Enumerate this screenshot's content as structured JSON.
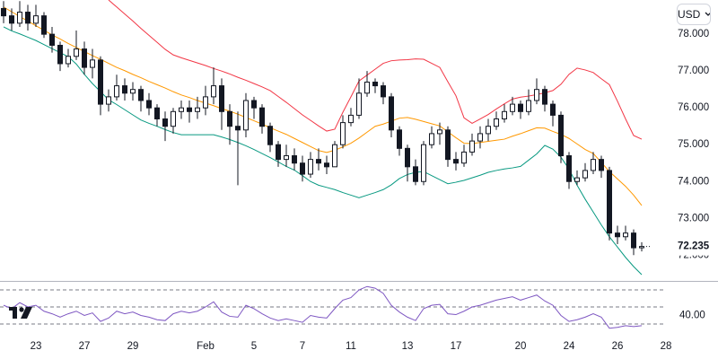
{
  "chart_data": [
    {
      "type": "candlestick",
      "currency": "USD",
      "categories": [
        null,
        null,
        null,
        null,
        "23",
        null,
        null,
        null,
        null,
        null,
        "27",
        null,
        null,
        null,
        null,
        null,
        "29",
        null,
        null,
        null,
        null,
        null,
        null,
        null,
        null,
        "Feb",
        null,
        null,
        null,
        null,
        null,
        "5",
        null,
        null,
        null,
        null,
        null,
        "7",
        null,
        null,
        null,
        null,
        null,
        "11",
        null,
        null,
        null,
        null,
        null,
        null,
        "13",
        null,
        null,
        null,
        null,
        null,
        "17",
        null,
        null,
        null,
        null,
        null,
        null,
        null,
        "20",
        null,
        null,
        null,
        null,
        null,
        "24",
        null,
        null,
        null,
        null,
        null,
        "26",
        null,
        null,
        null,
        null,
        null,
        "28"
      ],
      "open": [
        78.7,
        78.5,
        78.3,
        78.6,
        78.3,
        78.5,
        78.0,
        77.7,
        77.2,
        77.4,
        77.6,
        77.1,
        77.3,
        76.1,
        76.3,
        76.6,
        76.4,
        76.5,
        76.2,
        76.0,
        75.7,
        75.5,
        75.9,
        76.0,
        75.9,
        76.0,
        76.3,
        76.6,
        75.9,
        75.5,
        75.4,
        76.2,
        76.0,
        75.5,
        75.0,
        74.6,
        74.7,
        74.5,
        74.2,
        74.6,
        74.5,
        74.4,
        75.0,
        75.6,
        75.8,
        76.4,
        76.7,
        76.6,
        76.3,
        75.4,
        74.9,
        74.4,
        74.0,
        75.0,
        75.3,
        75.4,
        74.6,
        74.5,
        74.8,
        75.1,
        75.3,
        75.5,
        75.7,
        75.9,
        76.1,
        75.9,
        76.2,
        76.5,
        76.1,
        75.8,
        74.7,
        74.0,
        74.1,
        74.3,
        74.6,
        74.3,
        72.6,
        72.5,
        72.6,
        72.2,
        null,
        null,
        null
      ],
      "high": [
        78.9,
        78.7,
        78.9,
        78.8,
        78.8,
        78.6,
        78.2,
        77.8,
        77.6,
        78.1,
        77.8,
        77.6,
        77.4,
        76.5,
        76.9,
        76.8,
        76.7,
        76.6,
        76.4,
        76.1,
        75.9,
        76.0,
        76.2,
        76.2,
        76.3,
        76.6,
        77.1,
        76.8,
        76.1,
        75.9,
        76.4,
        76.3,
        76.1,
        75.6,
        75.1,
        75.0,
        74.9,
        74.7,
        74.8,
        74.9,
        74.7,
        75.1,
        75.8,
        76.0,
        76.8,
        77.0,
        76.8,
        76.7,
        76.4,
        75.5,
        75.0,
        74.6,
        75.1,
        75.5,
        75.6,
        75.5,
        74.8,
        75.0,
        75.3,
        75.5,
        75.7,
        75.9,
        76.1,
        76.3,
        76.2,
        76.5,
        76.8,
        76.6,
        76.2,
        75.9,
        74.8,
        74.3,
        74.5,
        74.8,
        74.7,
        74.4,
        72.8,
        72.8,
        72.7,
        72.35,
        null,
        null,
        null
      ],
      "low": [
        78.3,
        78.1,
        78.2,
        78.1,
        78.2,
        77.9,
        77.5,
        77.0,
        77.1,
        77.3,
        76.9,
        76.8,
        75.8,
        75.9,
        76.2,
        76.2,
        76.2,
        75.9,
        75.8,
        75.5,
        75.1,
        75.3,
        75.7,
        75.6,
        75.7,
        75.8,
        76.1,
        75.4,
        75.0,
        73.9,
        75.2,
        75.7,
        75.3,
        74.8,
        74.4,
        74.4,
        74.3,
        74.0,
        74.1,
        74.3,
        74.2,
        74.4,
        74.9,
        75.5,
        75.7,
        76.3,
        76.4,
        76.1,
        75.2,
        74.7,
        74.0,
        73.9,
        73.9,
        74.9,
        75.0,
        74.4,
        74.3,
        74.4,
        74.7,
        74.9,
        75.1,
        75.4,
        75.6,
        75.8,
        75.7,
        75.8,
        76.1,
        75.9,
        75.5,
        74.5,
        73.8,
        73.9,
        74.0,
        74.2,
        74.1,
        72.4,
        72.3,
        72.4,
        72.0,
        72.1,
        null,
        null,
        null
      ],
      "close": [
        78.5,
        78.3,
        78.6,
        78.3,
        78.5,
        78.0,
        77.7,
        77.2,
        77.4,
        77.6,
        77.1,
        77.3,
        76.1,
        76.3,
        76.6,
        76.4,
        76.5,
        76.2,
        76.0,
        75.7,
        75.5,
        75.9,
        76.0,
        75.9,
        76.0,
        76.3,
        76.6,
        75.9,
        75.5,
        75.4,
        76.2,
        76.0,
        75.5,
        75.0,
        74.6,
        74.7,
        74.5,
        74.2,
        74.6,
        74.5,
        74.4,
        75.0,
        75.6,
        75.8,
        76.4,
        76.7,
        76.6,
        76.3,
        75.4,
        74.9,
        74.4,
        74.0,
        75.0,
        75.3,
        75.4,
        74.6,
        74.5,
        74.8,
        75.1,
        75.3,
        75.5,
        75.7,
        75.9,
        76.1,
        75.9,
        76.2,
        76.5,
        76.1,
        75.8,
        74.7,
        74.0,
        74.1,
        74.3,
        74.6,
        74.3,
        72.6,
        72.5,
        72.6,
        72.2,
        72.235,
        null,
        null,
        null
      ],
      "up_color": "#ffffff",
      "down_color": "#131722",
      "wick_color": "#131722",
      "bands": [
        {
          "color": "#f23645",
          "values": [
            null,
            null,
            null,
            null,
            null,
            null,
            null,
            null,
            null,
            null,
            null,
            null,
            null,
            78.93,
            78.74,
            78.55,
            78.36,
            78.16,
            77.97,
            77.78,
            77.59,
            77.44,
            77.36,
            77.29,
            77.22,
            77.15,
            77.07,
            77.0,
            76.92,
            76.83,
            76.75,
            76.66,
            76.57,
            76.47,
            76.31,
            76.15,
            75.98,
            75.81,
            75.66,
            75.51,
            75.37,
            75.42,
            75.88,
            76.3,
            76.73,
            76.89,
            77.05,
            77.21,
            77.28,
            77.3,
            77.31,
            77.33,
            77.32,
            77.21,
            77.1,
            76.71,
            76.33,
            75.73,
            75.58,
            75.7,
            75.82,
            75.97,
            76.11,
            76.24,
            76.29,
            76.32,
            76.36,
            76.41,
            76.47,
            76.64,
            76.91,
            77.08,
            77.03,
            76.96,
            76.79,
            76.63,
            76.18,
            75.7,
            75.25,
            75.15,
            null,
            null,
            null
          ]
        },
        {
          "color": "#ff9800",
          "values": [
            78.74,
            78.61,
            78.48,
            78.36,
            78.23,
            78.11,
            77.98,
            77.87,
            77.75,
            77.64,
            77.53,
            77.42,
            77.32,
            77.21,
            77.1,
            77.01,
            76.91,
            76.82,
            76.72,
            76.63,
            76.54,
            76.44,
            76.35,
            76.28,
            76.2,
            76.13,
            76.06,
            75.98,
            75.91,
            75.83,
            75.74,
            75.65,
            75.56,
            75.46,
            75.37,
            75.28,
            75.17,
            75.06,
            74.95,
            74.84,
            74.79,
            74.85,
            74.94,
            75.04,
            75.18,
            75.34,
            75.5,
            75.56,
            75.64,
            75.72,
            75.74,
            75.69,
            75.63,
            75.57,
            75.51,
            75.35,
            75.19,
            75.04,
            75.03,
            75.06,
            75.09,
            75.12,
            75.15,
            75.23,
            75.3,
            75.38,
            75.46,
            75.45,
            75.36,
            75.28,
            75.17,
            75.02,
            74.87,
            74.76,
            74.52,
            74.27,
            74.07,
            73.87,
            73.63,
            73.35,
            null,
            null,
            null
          ]
        },
        {
          "color": "#089981",
          "values": [
            78.2,
            78.09,
            78.01,
            77.92,
            77.83,
            77.72,
            77.61,
            77.5,
            77.39,
            77.19,
            76.91,
            76.66,
            76.44,
            76.22,
            76.09,
            75.95,
            75.81,
            75.67,
            75.58,
            75.5,
            75.41,
            75.33,
            75.27,
            75.27,
            75.27,
            75.27,
            75.27,
            75.21,
            75.14,
            75.06,
            74.97,
            74.87,
            74.76,
            74.65,
            74.53,
            74.41,
            74.31,
            74.16,
            74.0,
            73.9,
            73.84,
            73.78,
            73.7,
            73.63,
            73.56,
            73.63,
            73.7,
            73.78,
            73.91,
            74.08,
            74.19,
            74.25,
            74.27,
            74.16,
            74.05,
            73.94,
            73.98,
            74.03,
            74.1,
            74.17,
            74.25,
            74.3,
            74.34,
            74.37,
            74.41,
            74.58,
            74.75,
            74.98,
            74.88,
            74.66,
            74.34,
            73.9,
            73.52,
            73.17,
            72.82,
            72.5,
            72.22,
            71.94,
            71.69,
            71.47,
            null,
            null,
            null
          ]
        }
      ],
      "last_price": 72.235,
      "ylim": [
        71.3,
        78.93
      ],
      "yticks": [
        {
          "value": 72,
          "label": "72.000"
        },
        {
          "value": 73,
          "label": "73.000"
        },
        {
          "value": 74,
          "label": "74.000"
        },
        {
          "value": 75,
          "label": "75.000"
        },
        {
          "value": 76,
          "label": "76.000"
        },
        {
          "value": 77,
          "label": "77.000"
        },
        {
          "value": 78,
          "label": "78.000"
        }
      ]
    },
    {
      "type": "line",
      "color": "#7e57c2",
      "values": [
        52,
        48,
        55,
        50,
        52,
        45,
        42,
        38,
        42,
        45,
        40,
        43,
        33,
        37,
        45,
        42,
        44,
        40,
        38,
        35,
        34,
        42,
        45,
        43,
        45,
        50,
        56,
        44,
        39,
        38,
        52,
        48,
        42,
        37,
        34,
        36,
        34,
        32,
        40,
        38,
        37,
        48,
        58,
        61,
        70,
        74,
        72,
        66,
        52,
        44,
        38,
        34,
        48,
        52,
        53,
        42,
        41,
        45,
        50,
        52,
        55,
        58,
        60,
        62,
        58,
        61,
        64,
        57,
        52,
        40,
        33,
        35,
        38,
        42,
        38,
        25,
        26,
        28,
        27,
        28,
        null,
        null,
        null
      ],
      "levels": [
        70,
        50,
        30
      ],
      "ylim": [
        22.6,
        77.4
      ],
      "yticks": [
        {
          "value": 40,
          "label": "40.00"
        }
      ]
    }
  ]
}
